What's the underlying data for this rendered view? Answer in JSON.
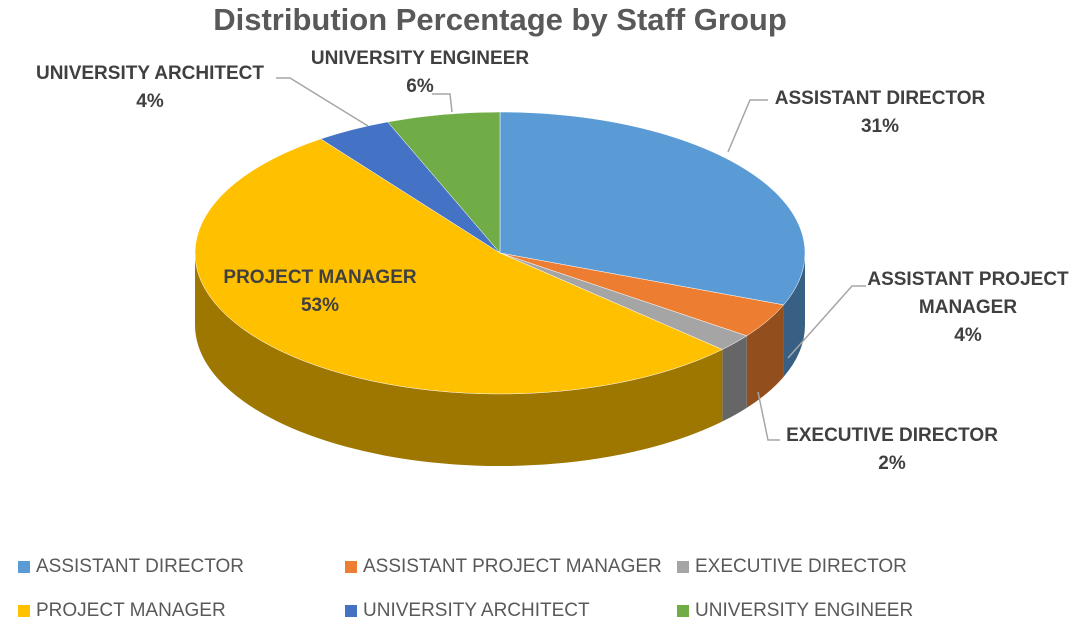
{
  "chart_data": {
    "type": "pie",
    "title": "Distribution Percentage by Staff Group",
    "categories": [
      "ASSISTANT DIRECTOR",
      "ASSISTANT PROJECT MANAGER",
      "EXECUTIVE DIRECTOR",
      "PROJECT MANAGER",
      "UNIVERSITY ARCHITECT",
      "UNIVERSITY ENGINEER"
    ],
    "values": [
      31,
      4,
      2,
      53,
      4,
      6
    ],
    "value_labels": [
      "31%",
      "4%",
      "2%",
      "53%",
      "4%",
      "6%"
    ],
    "colors": [
      "#5b9bd5",
      "#ed7d31",
      "#a5a5a5",
      "#ffc000",
      "#4472c4",
      "#70ad47"
    ],
    "legend": "bottom"
  }
}
